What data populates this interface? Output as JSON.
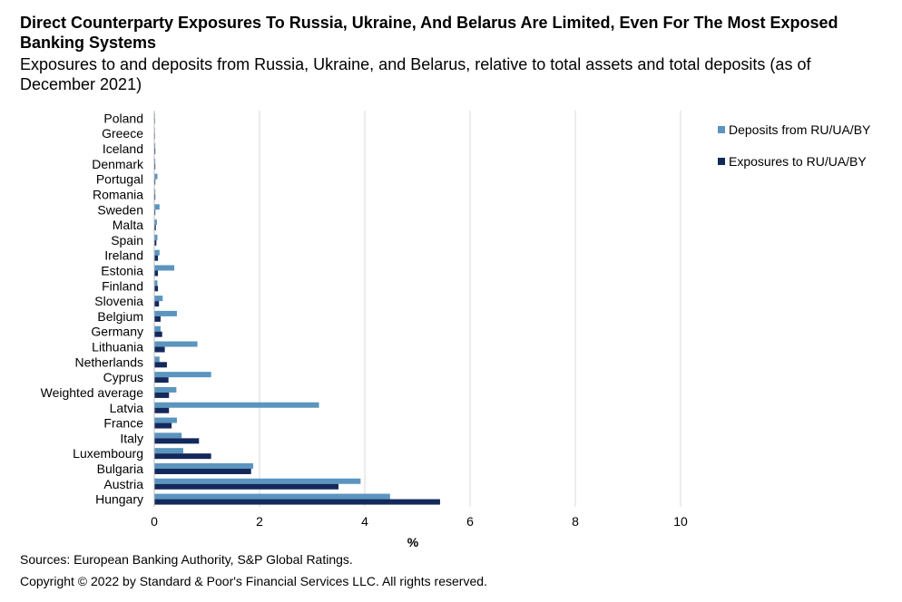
{
  "chart_data": {
    "type": "bar",
    "orientation": "horizontal",
    "title": "Direct Counterparty Exposures To Russia, Ukraine, And Belarus Are Limited, Even For The Most Exposed Banking Systems",
    "subtitle": "Exposures to and deposits from Russia, Ukraine, and Belarus, relative to total assets and total deposits (as of December 2021)",
    "xlabel": "%",
    "ylabel": "",
    "xlim": [
      0,
      10
    ],
    "xticks": [
      0,
      2,
      4,
      6,
      8,
      10
    ],
    "grid": true,
    "legend_position": "top-right",
    "categories": [
      "Poland",
      "Greece",
      "Iceland",
      "Denmark",
      "Portugal",
      "Romania",
      "Sweden",
      "Malta",
      "Spain",
      "Ireland",
      "Estonia",
      "Finland",
      "Slovenia",
      "Belgium",
      "Germany",
      "Lithuania",
      "Netherlands",
      "Cyprus",
      "Weighted average",
      "Latvia",
      "France",
      "Italy",
      "Luxembourg",
      "Bulgaria",
      "Austria",
      "Hungary"
    ],
    "series": [
      {
        "name": "Deposits from RU/UA/BY",
        "color": "#5b95bf",
        "values": [
          0.01,
          0.01,
          0.02,
          0.02,
          0.06,
          0.02,
          0.1,
          0.05,
          0.06,
          0.1,
          0.38,
          0.06,
          0.16,
          0.43,
          0.12,
          0.82,
          0.1,
          1.08,
          0.42,
          3.13,
          0.43,
          0.52,
          0.55,
          1.88,
          3.92,
          4.48
        ]
      },
      {
        "name": "Exposures to RU/UA/BY",
        "color": "#13295b",
        "values": [
          0.01,
          0.01,
          0.02,
          0.02,
          0.02,
          0.02,
          0.02,
          0.03,
          0.04,
          0.07,
          0.07,
          0.07,
          0.09,
          0.12,
          0.15,
          0.2,
          0.24,
          0.27,
          0.28,
          0.28,
          0.33,
          0.85,
          1.08,
          1.84,
          3.5,
          5.43
        ]
      }
    ]
  },
  "footer": {
    "sources": "Sources: European Banking Authority, S&P Global Ratings.",
    "copyright": "Copyright © 2022 by Standard & Poor's Financial Services LLC. All rights reserved."
  }
}
